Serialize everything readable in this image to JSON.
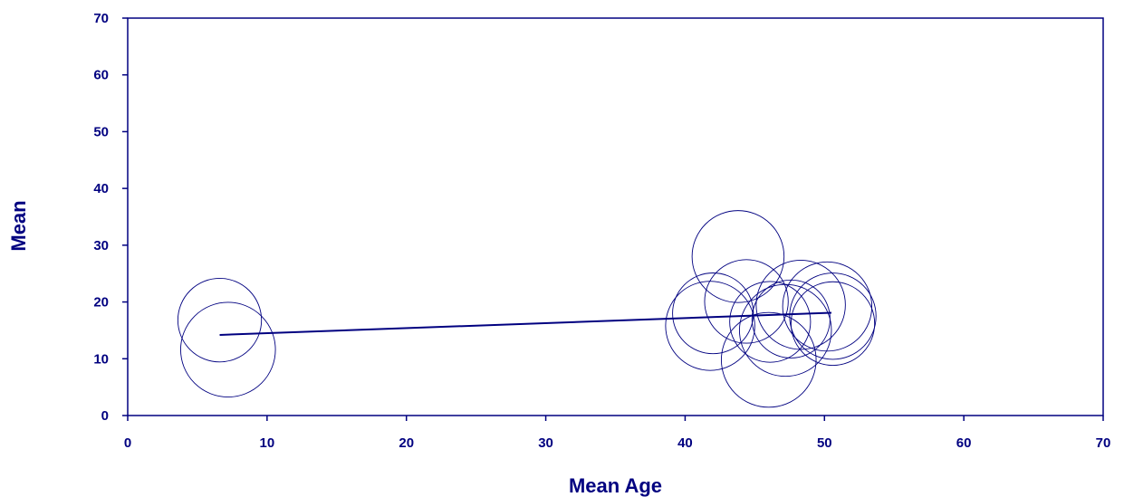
{
  "chart_data": {
    "type": "scatter",
    "title": "",
    "xlabel": "Mean Age",
    "ylabel": "Mean",
    "xlim": [
      0,
      70
    ],
    "ylim": [
      0,
      70
    ],
    "xticks": [
      "0",
      "10",
      "20",
      "30",
      "40",
      "50",
      "60",
      "70"
    ],
    "yticks": [
      "0",
      "10",
      "20",
      "30",
      "40",
      "50",
      "60",
      "70"
    ],
    "grid": false,
    "legend": "none",
    "color": "#000080",
    "bubbles": [
      {
        "x": 6.6,
        "y": 16.8,
        "r": 3.0
      },
      {
        "x": 7.2,
        "y": 11.6,
        "r": 3.4
      },
      {
        "x": 43.8,
        "y": 28.0,
        "r": 3.3
      },
      {
        "x": 44.4,
        "y": 20.1,
        "r": 3.0
      },
      {
        "x": 42.0,
        "y": 18.0,
        "r": 2.9
      },
      {
        "x": 41.8,
        "y": 15.8,
        "r": 3.2
      },
      {
        "x": 46.1,
        "y": 16.5,
        "r": 2.9
      },
      {
        "x": 47.2,
        "y": 15.0,
        "r": 3.3
      },
      {
        "x": 47.6,
        "y": 17.0,
        "r": 2.8
      },
      {
        "x": 48.3,
        "y": 19.5,
        "r": 3.2
      },
      {
        "x": 50.2,
        "y": 19.2,
        "r": 3.2
      },
      {
        "x": 50.6,
        "y": 17.5,
        "r": 3.1
      },
      {
        "x": 50.6,
        "y": 16.2,
        "r": 3.0
      },
      {
        "x": 46.0,
        "y": 9.8,
        "r": 3.4
      }
    ],
    "trend_line": {
      "x": [
        6.6,
        50.5
      ],
      "y": [
        14.2,
        18.1
      ]
    }
  }
}
